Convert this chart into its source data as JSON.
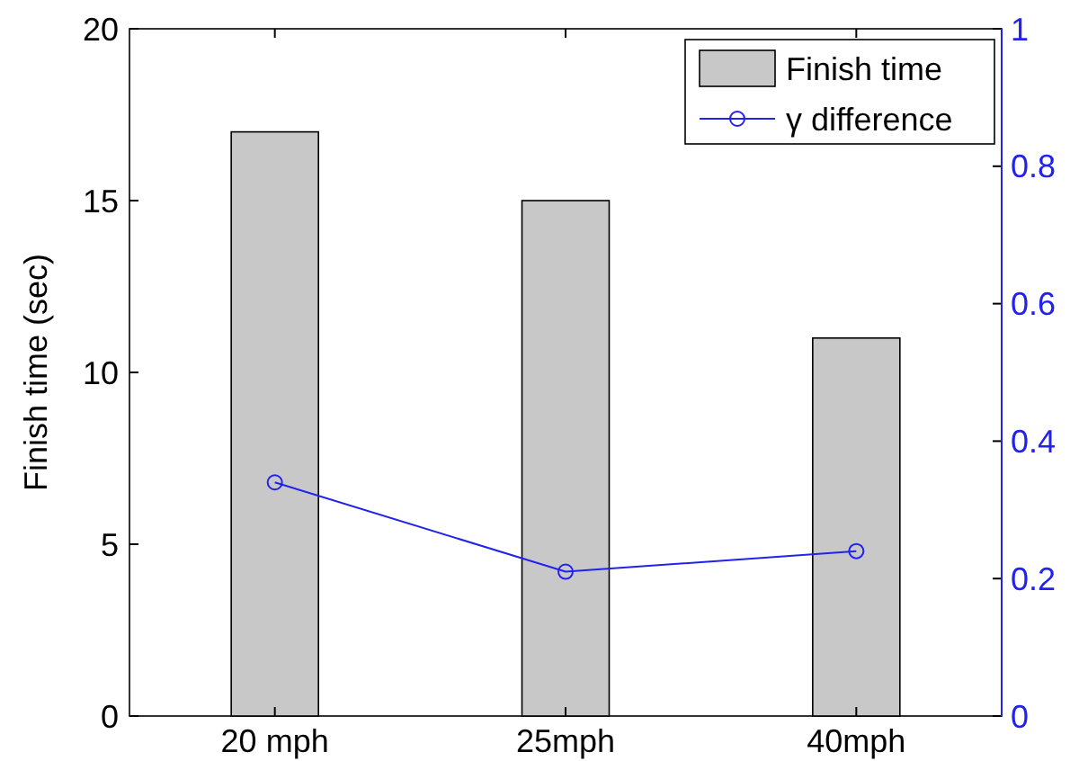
{
  "chart_data": {
    "type": "bar",
    "categories": [
      "20 mph",
      "25mph",
      "40mph"
    ],
    "ylabel": "Finish time (sec)",
    "ylim": [
      0,
      20
    ],
    "yticks": [
      0,
      5,
      10,
      15,
      20
    ],
    "y2lim": [
      0,
      1
    ],
    "y2ticks": [
      0,
      0.2,
      0.4,
      0.6,
      0.8,
      1
    ],
    "legend": "top right",
    "grid": false,
    "series": [
      {
        "name": "Finish time",
        "color": "#c8c8c8",
        "values": [
          17,
          15,
          11
        ]
      },
      {
        "name": "γ difference",
        "type": "line",
        "axis": "y2",
        "color": "#2222ee",
        "marker": "circle",
        "values": [
          0.34,
          0.21,
          0.24
        ]
      }
    ]
  }
}
